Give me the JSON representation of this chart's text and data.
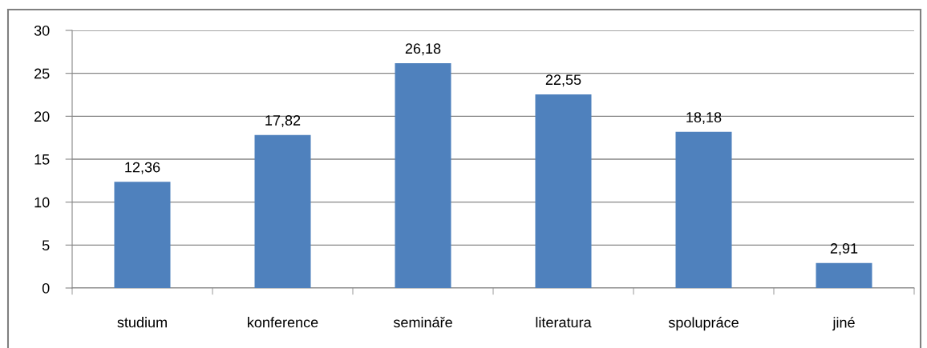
{
  "chart_data": {
    "type": "bar",
    "categories": [
      "studium",
      "konference",
      "semináře",
      "literatura",
      "spolupráce",
      "jiné"
    ],
    "values": [
      12.36,
      17.82,
      26.18,
      22.55,
      18.18,
      2.91
    ],
    "value_labels": [
      "12,36",
      "17,82",
      "26,18",
      "22,55",
      "18,18",
      "2,91"
    ],
    "color": "#4f81bd",
    "ylim": [
      0,
      30
    ],
    "yticks": [
      0,
      5,
      10,
      15,
      20,
      25,
      30
    ],
    "grid": "y",
    "legend": false
  }
}
